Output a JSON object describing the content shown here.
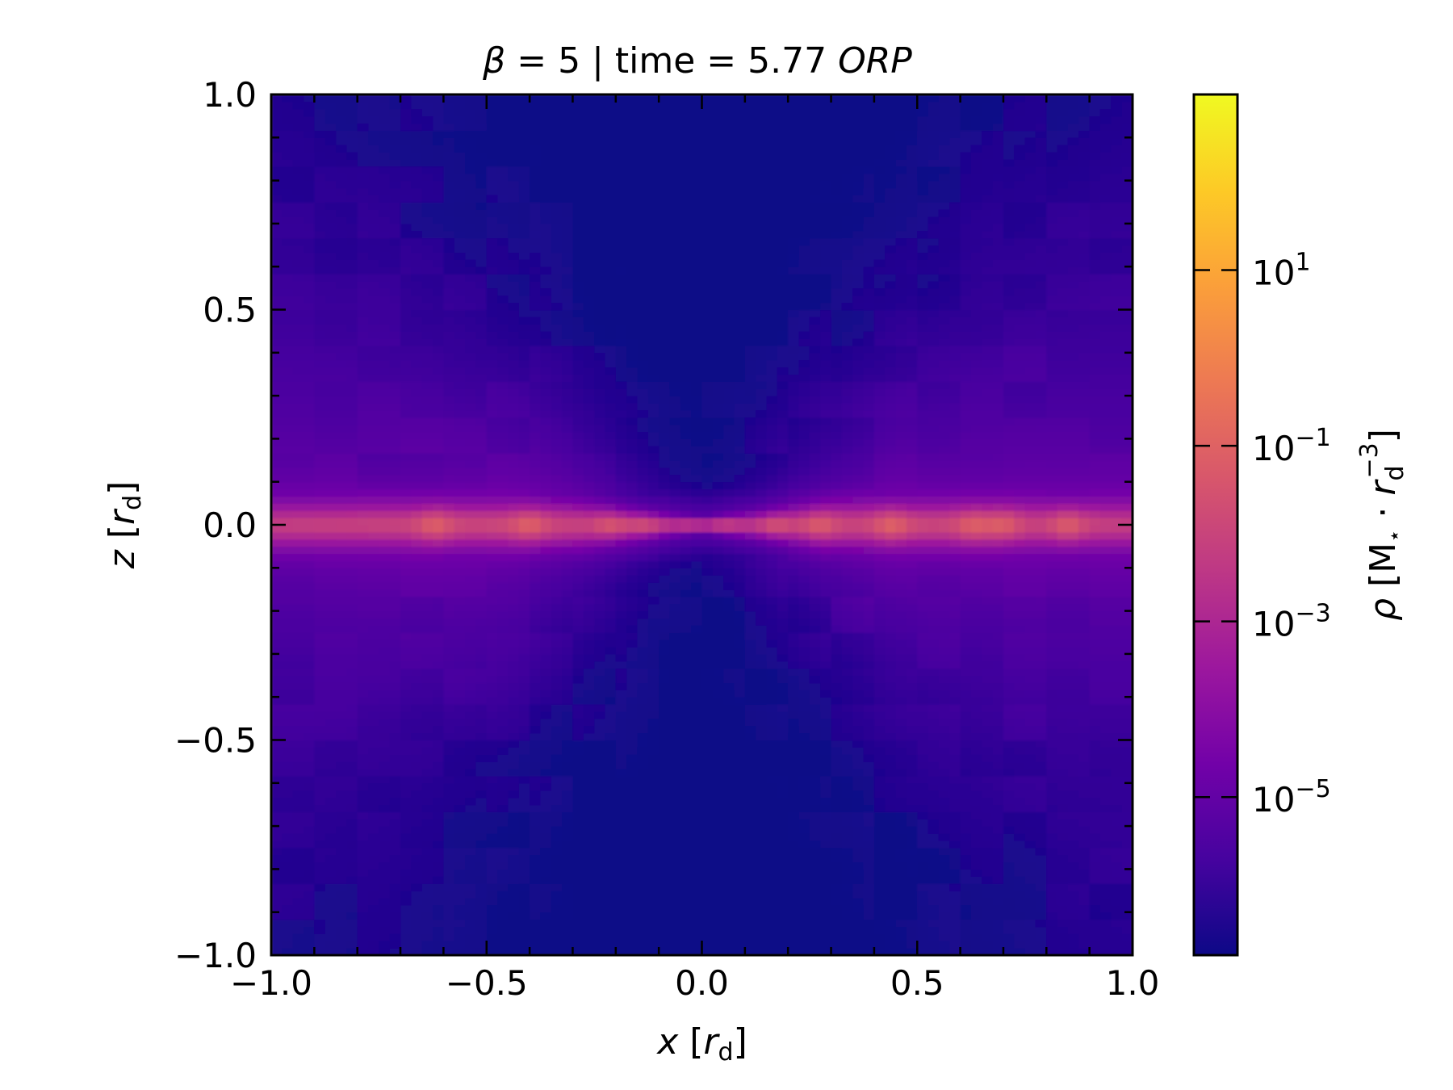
{
  "chart_data": {
    "type": "heatmap",
    "title": {
      "beta_symbol": "β",
      "middle": " = 5 | time = 5.77 ",
      "unit": "ORP"
    },
    "xlabel": {
      "var": "x",
      "open": " [",
      "r": "r",
      "sub": "d",
      "close": "]"
    },
    "ylabel": {
      "var": "z",
      "open": " [",
      "r": "r",
      "sub": "d",
      "close": "]"
    },
    "xlim": [
      -1.0,
      1.0
    ],
    "ylim": [
      -1.0,
      1.0
    ],
    "x_ticks": [
      -1.0,
      -0.5,
      0.0,
      0.5,
      1.0
    ],
    "x_tick_labels": [
      "−1.0",
      "−0.5",
      "0.0",
      "0.5",
      "1.0"
    ],
    "y_ticks": [
      1.0,
      0.5,
      0.0,
      -0.5,
      -1.0
    ],
    "y_tick_labels": [
      "1.0",
      "0.5",
      "0.0",
      "−0.5",
      "−1.0"
    ],
    "minor_tick_step": 0.1,
    "colormap": "plasma",
    "log_scale": true,
    "color_range_log10": [
      -6.8,
      3.0
    ],
    "colorbar": {
      "ticks_log10": [
        1,
        -1,
        -3,
        -5
      ],
      "tick_labels": [
        {
          "base": "10",
          "exp": "1"
        },
        {
          "base": "10",
          "exp": "−1"
        },
        {
          "base": "10",
          "exp": "−3"
        },
        {
          "base": "10",
          "exp": "−5"
        }
      ],
      "label": {
        "rho": "ρ",
        "pre": " [M",
        "star": "⋆",
        "dot": " · ",
        "r": "r",
        "sub": "d",
        "sup": "−3",
        "close": "]"
      }
    },
    "field_description": "Thin dense midplane disk at z=0 with bright clumps, low-density cone above and below the centre, densest-to-sparsest gradient away from the midplane.",
    "midplane_clumps_x": [
      -0.62,
      -0.4,
      -0.21,
      -0.13,
      -0.02,
      0.05,
      0.17,
      0.27,
      0.44,
      0.63,
      0.7,
      0.85
    ]
  },
  "colors": {
    "plasma_stops": [
      "#0d0887",
      "#46039f",
      "#7201a8",
      "#9c179e",
      "#bd3786",
      "#d8576b",
      "#ed7953",
      "#fb9f3a",
      "#fdca26",
      "#f0f921"
    ]
  }
}
